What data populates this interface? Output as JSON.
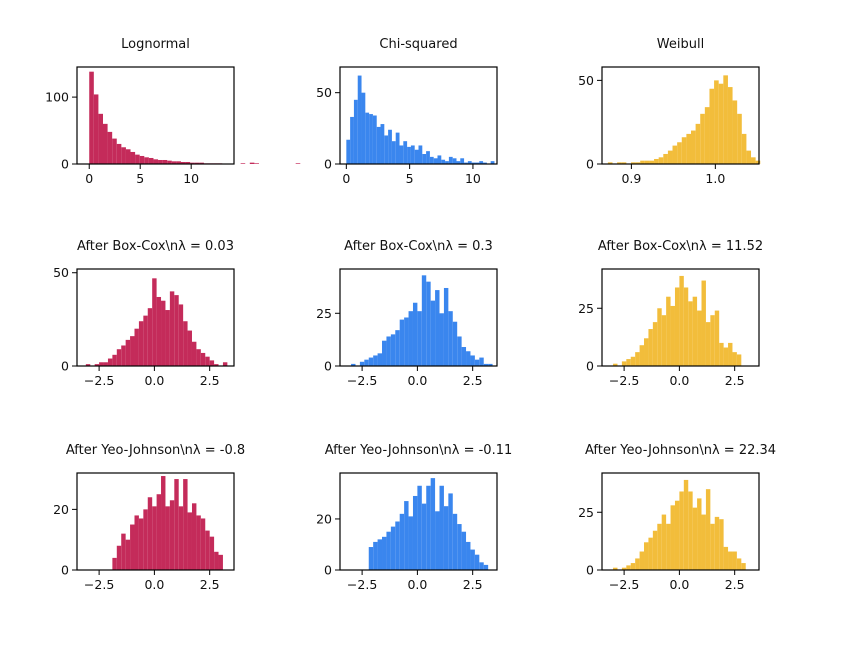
{
  "colors": {
    "lognormal": "#c42b5a",
    "chi": "#3a86ee",
    "weibull": "#f2bd3b",
    "axes": "#000000",
    "background": "#ffffff"
  },
  "chart_data": [
    {
      "type": "bar",
      "title": "Lognormal",
      "color": "#c42b5a",
      "xlim": [
        -1.2,
        14.2
      ],
      "ylim": [
        0,
        145
      ],
      "xticks": [
        0,
        5,
        10
      ],
      "xtick_labels": [
        "0",
        "5",
        "10"
      ],
      "yticks": [
        0,
        100
      ],
      "ytick_labels": [
        "0",
        "100"
      ],
      "bin_start": 0.0,
      "bin_width": 0.45,
      "values": [
        138,
        104,
        75,
        60,
        48,
        38,
        30,
        25,
        22,
        18,
        14,
        12,
        10,
        9,
        7,
        6,
        6,
        5,
        4,
        4,
        3,
        3,
        2,
        2,
        2,
        1,
        1,
        1,
        1,
        0,
        0,
        0,
        0,
        1,
        0,
        2,
        1,
        0,
        0,
        0,
        0,
        0,
        0,
        0,
        0,
        1,
        0,
        0,
        0
      ]
    },
    {
      "type": "bar",
      "title": "Chi-squared",
      "color": "#3a86ee",
      "xlim": [
        -0.5,
        11.9
      ],
      "ylim": [
        0,
        68
      ],
      "xticks": [
        0,
        5,
        10
      ],
      "xtick_labels": [
        "0",
        "5",
        "10"
      ],
      "yticks": [
        0,
        50
      ],
      "ytick_labels": [
        "0",
        "50"
      ],
      "bin_start": 0.0,
      "bin_width": 0.3,
      "values": [
        17,
        33,
        45,
        62,
        50,
        36,
        35,
        34,
        26,
        28,
        20,
        24,
        16,
        22,
        13,
        16,
        12,
        13,
        10,
        13,
        7,
        9,
        5,
        4,
        6,
        3,
        2,
        5,
        4,
        2,
        4,
        1,
        2,
        1,
        1,
        2,
        1,
        0,
        2
      ]
    },
    {
      "type": "bar",
      "title": "Weibull",
      "color": "#f2bd3b",
      "xlim": [
        0.865,
        1.052
      ],
      "ylim": [
        0,
        58
      ],
      "xticks": [
        0.9,
        1.0
      ],
      "xtick_labels": [
        "0.9",
        "1.0"
      ],
      "yticks": [
        0,
        50
      ],
      "ytick_labels": [
        "0",
        "50"
      ],
      "bin_start": 0.872,
      "bin_width": 0.0055,
      "values": [
        1,
        0,
        1,
        1,
        0,
        1,
        1,
        2,
        2,
        2,
        3,
        4,
        6,
        8,
        11,
        13,
        16,
        18,
        20,
        24,
        30,
        34,
        45,
        50,
        48,
        53,
        46,
        38,
        30,
        18,
        8,
        4,
        2
      ]
    },
    {
      "type": "bar",
      "title": "After Box-Cox\\nλ = 0.03",
      "color": "#c42b5a",
      "xlim": [
        -3.5,
        3.6
      ],
      "ylim": [
        0,
        52
      ],
      "xticks": [
        -2.5,
        0.0,
        2.5
      ],
      "xtick_labels": [
        "−2.5",
        "0.0",
        "2.5"
      ],
      "yticks": [
        0,
        50
      ],
      "ytick_labels": [
        "0",
        "50"
      ],
      "bin_start": -3.1,
      "bin_width": 0.2,
      "values": [
        1,
        0,
        1,
        2,
        2,
        4,
        6,
        9,
        11,
        14,
        16,
        20,
        24,
        27,
        31,
        47,
        37,
        35,
        30,
        40,
        38,
        33,
        24,
        19,
        13,
        9,
        7,
        5,
        3,
        1,
        0,
        2
      ]
    },
    {
      "type": "bar",
      "title": "After Box-Cox\\nλ = 0.3",
      "color": "#3a86ee",
      "xlim": [
        -3.5,
        3.6
      ],
      "ylim": [
        0,
        46
      ],
      "xticks": [
        -2.5,
        0.0,
        2.5
      ],
      "xtick_labels": [
        "−2.5",
        "0.0",
        "2.5"
      ],
      "yticks": [
        0,
        25
      ],
      "ytick_labels": [
        "0",
        "25"
      ],
      "bin_start": -3.0,
      "bin_width": 0.2,
      "values": [
        1,
        0,
        2,
        3,
        4,
        5,
        6,
        12,
        14,
        15,
        17,
        22,
        23,
        26,
        30,
        26,
        43,
        40,
        31,
        36,
        25,
        37,
        26,
        21,
        14,
        9,
        7,
        5,
        3,
        4,
        1,
        1
      ]
    },
    {
      "type": "bar",
      "title": "After Box-Cox\\nλ = 11.52",
      "color": "#f2bd3b",
      "xlim": [
        -3.5,
        3.6
      ],
      "ylim": [
        0,
        42
      ],
      "xticks": [
        -2.5,
        0.0,
        2.5
      ],
      "xtick_labels": [
        "−2.5",
        "0.0",
        "2.5"
      ],
      "yticks": [
        0,
        25
      ],
      "ytick_labels": [
        "0",
        "25"
      ],
      "bin_start": -3.0,
      "bin_width": 0.2,
      "values": [
        1,
        0,
        2,
        3,
        4,
        6,
        9,
        12,
        16,
        19,
        25,
        22,
        30,
        26,
        34,
        39,
        34,
        28,
        30,
        24,
        37,
        19,
        22,
        24,
        10,
        8,
        10,
        6,
        5
      ]
    },
    {
      "type": "bar",
      "title": "After Yeo-Johnson\\nλ = -0.8",
      "color": "#c42b5a",
      "xlim": [
        -3.5,
        3.6
      ],
      "ylim": [
        0,
        32
      ],
      "xticks": [
        -2.5,
        0.0,
        2.5
      ],
      "xtick_labels": [
        "−2.5",
        "0.0",
        "2.5"
      ],
      "yticks": [
        0,
        20
      ],
      "ytick_labels": [
        "0",
        "20"
      ],
      "bin_start": -1.9,
      "bin_width": 0.2,
      "values": [
        4,
        8,
        12,
        10,
        15,
        18,
        17,
        20,
        24,
        21,
        25,
        31,
        21,
        23,
        30,
        21,
        30,
        19,
        22,
        18,
        17,
        13,
        11,
        6,
        5
      ]
    },
    {
      "type": "bar",
      "title": "After Yeo-Johnson\\nλ = -0.11",
      "color": "#3a86ee",
      "xlim": [
        -3.5,
        3.6
      ],
      "ylim": [
        0,
        38
      ],
      "xticks": [
        -2.5,
        0.0,
        2.5
      ],
      "xtick_labels": [
        "−2.5",
        "0.0",
        "2.5"
      ],
      "yticks": [
        0,
        20
      ],
      "ytick_labels": [
        "0",
        "20"
      ],
      "bin_start": -2.2,
      "bin_width": 0.2,
      "values": [
        9,
        11,
        12,
        13,
        15,
        17,
        19,
        22,
        27,
        21,
        29,
        33,
        26,
        33,
        36,
        23,
        33,
        25,
        30,
        22,
        18,
        15,
        11,
        8,
        6,
        3,
        2
      ]
    },
    {
      "type": "bar",
      "title": "After Yeo-Johnson\\nλ = 22.34",
      "color": "#f2bd3b",
      "xlim": [
        -3.5,
        3.6
      ],
      "ylim": [
        0,
        42
      ],
      "xticks": [
        -2.5,
        0.0,
        2.5
      ],
      "xtick_labels": [
        "−2.5",
        "0.0",
        "2.5"
      ],
      "yticks": [
        0,
        25
      ],
      "ytick_labels": [
        "0",
        "25"
      ],
      "bin_start": -3.0,
      "bin_width": 0.2,
      "values": [
        1,
        0,
        1,
        2,
        3,
        5,
        8,
        12,
        14,
        17,
        20,
        24,
        20,
        28,
        30,
        34,
        39,
        34,
        27,
        31,
        24,
        35,
        20,
        23,
        22,
        10,
        8,
        8,
        5,
        3
      ]
    }
  ]
}
